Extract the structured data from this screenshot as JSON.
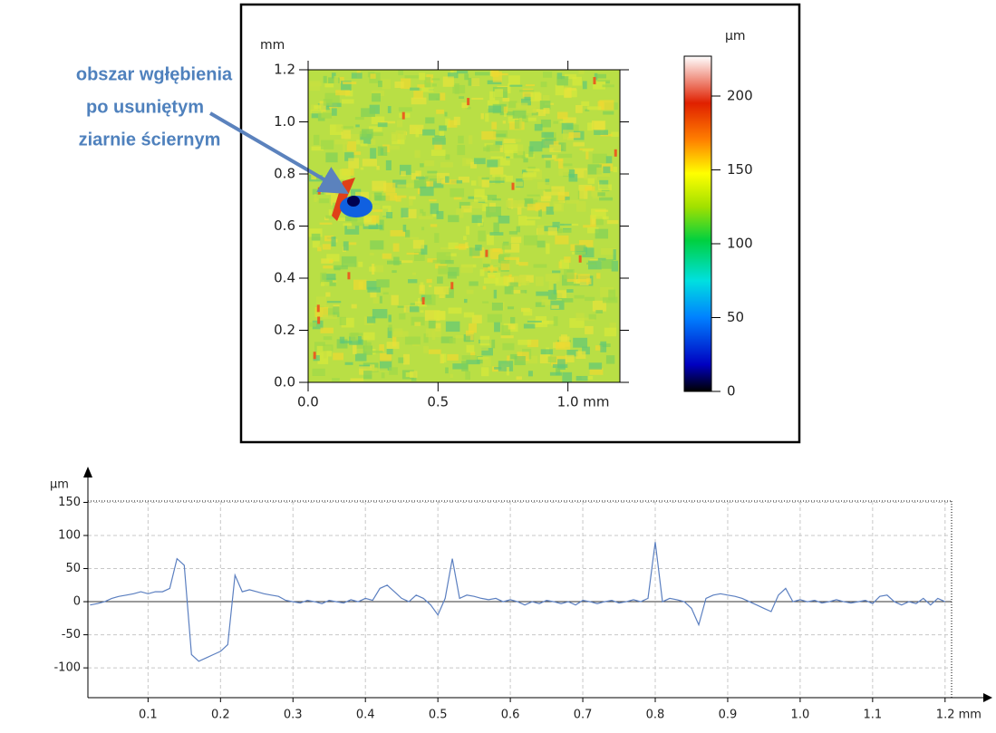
{
  "chart_data": [
    {
      "type": "heatmap",
      "x_unit": "mm",
      "y_unit": "mm",
      "colorbar_unit": "µm",
      "annotation": [
        "obszar wgłębienia",
        "po usuniętym",
        "ziarnie ściernym"
      ],
      "xlim": [
        0,
        1.2
      ],
      "ylim": [
        0,
        1.2
      ],
      "clim": [
        0,
        227
      ],
      "xticks": [
        {
          "value": 0,
          "label": "0.0"
        },
        0.5,
        {
          "value": 1,
          "label": "1.0 mm"
        }
      ],
      "yticks": [
        {
          "value": 0,
          "label": "0.0"
        },
        0.2,
        0.4,
        0.6,
        0.8,
        {
          "value": 1,
          "label": "1.0"
        },
        1.2
      ],
      "cticks": [
        0,
        50,
        100,
        150,
        200
      ]
    },
    {
      "type": "line",
      "y_unit": "µm",
      "color": "#5b7fc0",
      "grid": true,
      "xlim": [
        0.017,
        1.209
      ],
      "ylim": [
        -145,
        152
      ],
      "xticks": [
        0.1,
        0.2,
        0.3,
        0.4,
        0.5,
        0.6,
        0.7,
        0.8,
        0.9,
        {
          "value": 1,
          "label": "1.0"
        },
        1.1,
        {
          "value": 1.2,
          "label": "1.2 mm"
        }
      ],
      "yticks": [
        150,
        100,
        50,
        0,
        -50,
        -100
      ],
      "x": [
        0.02,
        0.03,
        0.04,
        0.05,
        0.06,
        0.07,
        0.08,
        0.09,
        0.1,
        0.11,
        0.12,
        0.13,
        0.14,
        0.15,
        0.16,
        0.17,
        0.18,
        0.19,
        0.2,
        0.21,
        0.22,
        0.23,
        0.24,
        0.25,
        0.26,
        0.27,
        0.28,
        0.29,
        0.3,
        0.31,
        0.32,
        0.33,
        0.34,
        0.35,
        0.36,
        0.37,
        0.38,
        0.39,
        0.4,
        0.41,
        0.42,
        0.43,
        0.44,
        0.45,
        0.46,
        0.47,
        0.48,
        0.49,
        0.5,
        0.51,
        0.52,
        0.53,
        0.54,
        0.55,
        0.56,
        0.57,
        0.58,
        0.59,
        0.6,
        0.61,
        0.62,
        0.63,
        0.64,
        0.65,
        0.66,
        0.67,
        0.68,
        0.69,
        0.7,
        0.71,
        0.72,
        0.73,
        0.74,
        0.75,
        0.76,
        0.77,
        0.78,
        0.79,
        0.8,
        0.81,
        0.82,
        0.83,
        0.84,
        0.85,
        0.86,
        0.87,
        0.88,
        0.89,
        0.9,
        0.91,
        0.92,
        0.93,
        0.94,
        0.95,
        0.96,
        0.97,
        0.98,
        0.99,
        1.0,
        1.01,
        1.02,
        1.03,
        1.04,
        1.05,
        1.06,
        1.07,
        1.08,
        1.09,
        1.1,
        1.11,
        1.12,
        1.13,
        1.14,
        1.15,
        1.16,
        1.17,
        1.18,
        1.19,
        1.2
      ],
      "values": [
        -5,
        -3,
        0,
        5,
        8,
        10,
        12,
        15,
        12,
        15,
        15,
        20,
        65,
        55,
        -80,
        -90,
        -85,
        -80,
        -75,
        -65,
        40,
        15,
        18,
        15,
        12,
        10,
        8,
        2,
        0,
        -2,
        2,
        0,
        -3,
        2,
        0,
        -2,
        3,
        0,
        5,
        2,
        20,
        25,
        15,
        5,
        0,
        10,
        5,
        -5,
        -20,
        5,
        65,
        5,
        10,
        8,
        5,
        3,
        5,
        0,
        3,
        0,
        -5,
        0,
        -3,
        2,
        0,
        -3,
        0,
        -5,
        2,
        0,
        -3,
        0,
        2,
        -2,
        0,
        3,
        0,
        5,
        90,
        0,
        5,
        3,
        0,
        -10,
        -35,
        5,
        10,
        12,
        10,
        8,
        5,
        0,
        -5,
        -10,
        -15,
        10,
        20,
        0,
        3,
        0,
        2,
        -2,
        0,
        3,
        0,
        -2,
        0,
        2,
        -3,
        8,
        10,
        0,
        -5,
        0,
        -3,
        5,
        -5,
        5,
        0
      ]
    }
  ]
}
